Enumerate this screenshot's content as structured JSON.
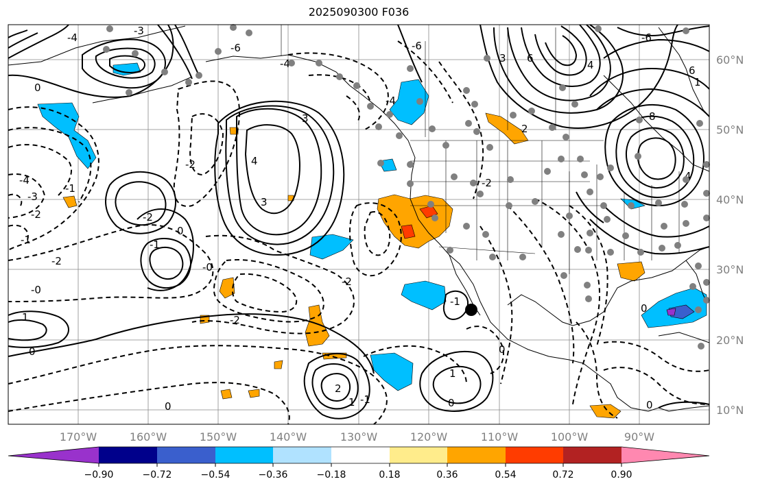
{
  "title": "2025090300 F036",
  "map": {
    "lon_ticks": [
      "170°W",
      "160°W",
      "150°W",
      "140°W",
      "130°W",
      "120°W",
      "110°W",
      "100°W",
      "90°W"
    ],
    "lat_ticks": [
      "60°N",
      "50°N",
      "40°N",
      "30°N",
      "20°N",
      "10°N"
    ],
    "contour_labels": [
      "0",
      "-4",
      "-3",
      "-2",
      "-1",
      "-2",
      "-1",
      "-0",
      "1",
      "0",
      "-4",
      "-3",
      "-6",
      "-4",
      "4",
      "3",
      "-2",
      "-2",
      "0",
      "-0",
      "-1",
      "-2",
      "0",
      "-2",
      "3",
      "-1",
      "0",
      "-1",
      "1",
      "2",
      "1",
      "0",
      "-6",
      "-4",
      "-2",
      "2",
      "8",
      "4",
      "-6",
      "6",
      "4",
      "6",
      "3",
      "1",
      "0",
      "0"
    ],
    "colors": {
      "orange": "#ffa500",
      "dark_orange": "#ff3c00",
      "light_blue": "#00bfff",
      "mid_blue": "#3a5fcd",
      "purple": "#9932cc",
      "station_gray": "#808080"
    }
  },
  "colorbar": {
    "ticks": [
      "−0.90",
      "−0.72",
      "−0.54",
      "−0.36",
      "−0.18",
      "0.18",
      "0.36",
      "0.54",
      "0.72",
      "0.90"
    ],
    "colors": [
      "#9932cc",
      "#00008b",
      "#3a5fcd",
      "#00bfff",
      "#b0e2ff",
      "#ffffff",
      "#ffec8b",
      "#ffa500",
      "#ff3c00",
      "#b22222",
      "#ff88b0"
    ]
  }
}
